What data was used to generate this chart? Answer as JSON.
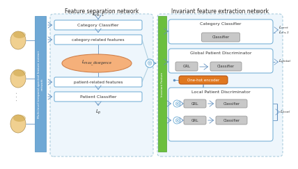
{
  "title_left": "Feature separation network",
  "title_right": "Invariant feature extraction network",
  "box_border_color": "#7ab3d8",
  "box_fill_white": "#ffffff",
  "bg_section": "#eef6fc",
  "bg_border": "#aaccdd",
  "green_bar_color": "#6bbf3e",
  "orange_box_color": "#e07820",
  "blue_bar_color": "#6fa8d5",
  "gray_box": "#c0c0c0",
  "ellipse_face": "#f5b07a",
  "ellipse_edge": "#d0804a",
  "arrow_color": "#6090c0",
  "text_color": "#333333",
  "white": "#ffffff",
  "label_cls1": "$\\mathit{L}_{cls,1}$",
  "label_Lp": "$\\mathit{L}_{p}$",
  "label_Lcent": "$\\mathit{L}_{cent}$",
  "label_Lcls2": "$\\mathit{L}_{cls,2}$",
  "label_Lglobal": "$\\mathit{L}_{global}$",
  "label_Llocal": "$\\mathit{L}_{local}$",
  "label_lmax": "$\\mathit{L}_{max\\_divergence}$",
  "cat_classifier": "Category Classifier",
  "cat_features": "category-related features",
  "pat_features": "patient-related features",
  "pat_classifier": "Patient Classifier",
  "inv_feature": "Invariant Feature",
  "one_hot": "One-hot encoder",
  "cat_cls_right": "Category Classifier",
  "glob_pat_disc": "Global Patient Discriminator",
  "loc_pat_disc": "Local Patient Discriminator",
  "classifier_label": "Classifier",
  "grl_label": "GRL",
  "mlts_label": "Multi-level temporal-spectral feature extract\nnetwork"
}
